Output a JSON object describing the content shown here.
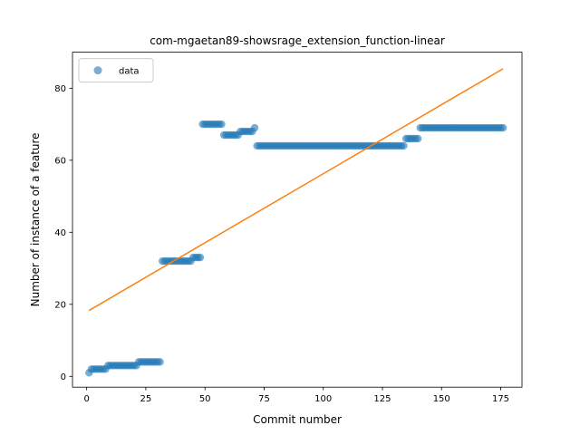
{
  "chart_data": {
    "type": "scatter",
    "title": "com-mgaetan89-showsrage_extension_function-linear",
    "xlabel": "Commit number",
    "ylabel": "Number of instance of a feature",
    "xlim": [
      -6,
      184
    ],
    "ylim": [
      -3,
      90
    ],
    "xticks": [
      0,
      25,
      50,
      75,
      100,
      125,
      150,
      175
    ],
    "yticks": [
      0,
      20,
      40,
      60,
      80
    ],
    "grid": false,
    "legend": {
      "position": "top-left",
      "entries": [
        "data"
      ]
    },
    "colors": {
      "data": "#1f77b4",
      "fit": "#ff7f0e"
    },
    "series": [
      {
        "name": "data",
        "kind": "scatter",
        "runs": [
          {
            "x_start": 1,
            "x_end": 1,
            "y": 1
          },
          {
            "x_start": 2,
            "x_end": 8,
            "y": 2
          },
          {
            "x_start": 9,
            "x_end": 21,
            "y": 3
          },
          {
            "x_start": 22,
            "x_end": 31,
            "y": 4
          },
          {
            "x_start": 32,
            "x_end": 44,
            "y": 32
          },
          {
            "x_start": 45,
            "x_end": 48,
            "y": 33
          },
          {
            "x_start": 49,
            "x_end": 57,
            "y": 70
          },
          {
            "x_start": 58,
            "x_end": 64,
            "y": 67
          },
          {
            "x_start": 65,
            "x_end": 70,
            "y": 68
          },
          {
            "x_start": 71,
            "x_end": 71,
            "y": 69
          },
          {
            "x_start": 72,
            "x_end": 134,
            "y": 64
          },
          {
            "x_start": 135,
            "x_end": 140,
            "y": 66
          },
          {
            "x_start": 141,
            "x_end": 176,
            "y": 69
          }
        ]
      },
      {
        "kind": "line",
        "x": [
          1,
          176
        ],
        "y": [
          18.3,
          85.4
        ]
      }
    ]
  }
}
